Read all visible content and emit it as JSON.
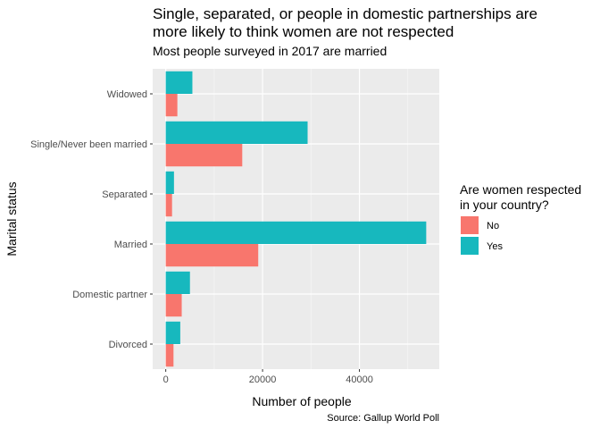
{
  "colors": {
    "panel": "#ebebeb",
    "grid_major": "#ffffff",
    "grid_minor": "#f5f5f5",
    "no": "#f8766d",
    "yes": "#17b8be",
    "tick_text": "#4d4d4d"
  },
  "chart_data": {
    "type": "bar",
    "orientation": "horizontal",
    "title": "Single, separated, or people in domestic partnerships are more likely to think women are not respected",
    "title_lines": [
      "Single, separated, or people in domestic partnerships are",
      "more likely to think women are not respected"
    ],
    "subtitle": "Most people surveyed in 2017 are married",
    "xlabel": "Number of people",
    "ylabel": "Marital status",
    "caption": "Source: Gallup World Poll",
    "categories": [
      "Widowed",
      "Single/Never been married",
      "Separated",
      "Married",
      "Domestic partner",
      "Divorced"
    ],
    "series": [
      {
        "name": "No",
        "values": [
          2400,
          15800,
          1300,
          19100,
          3300,
          1600
        ]
      },
      {
        "name": "Yes",
        "values": [
          5500,
          29300,
          1700,
          53800,
          5000,
          3000
        ]
      }
    ],
    "xlim": [
      -2700,
      56500
    ],
    "xticks": [
      0,
      20000,
      40000
    ],
    "grid": true,
    "legend": {
      "title": "Are women respected in your country?",
      "title_lines": [
        "Are women respected",
        "in your country?"
      ],
      "placement": "right"
    }
  }
}
